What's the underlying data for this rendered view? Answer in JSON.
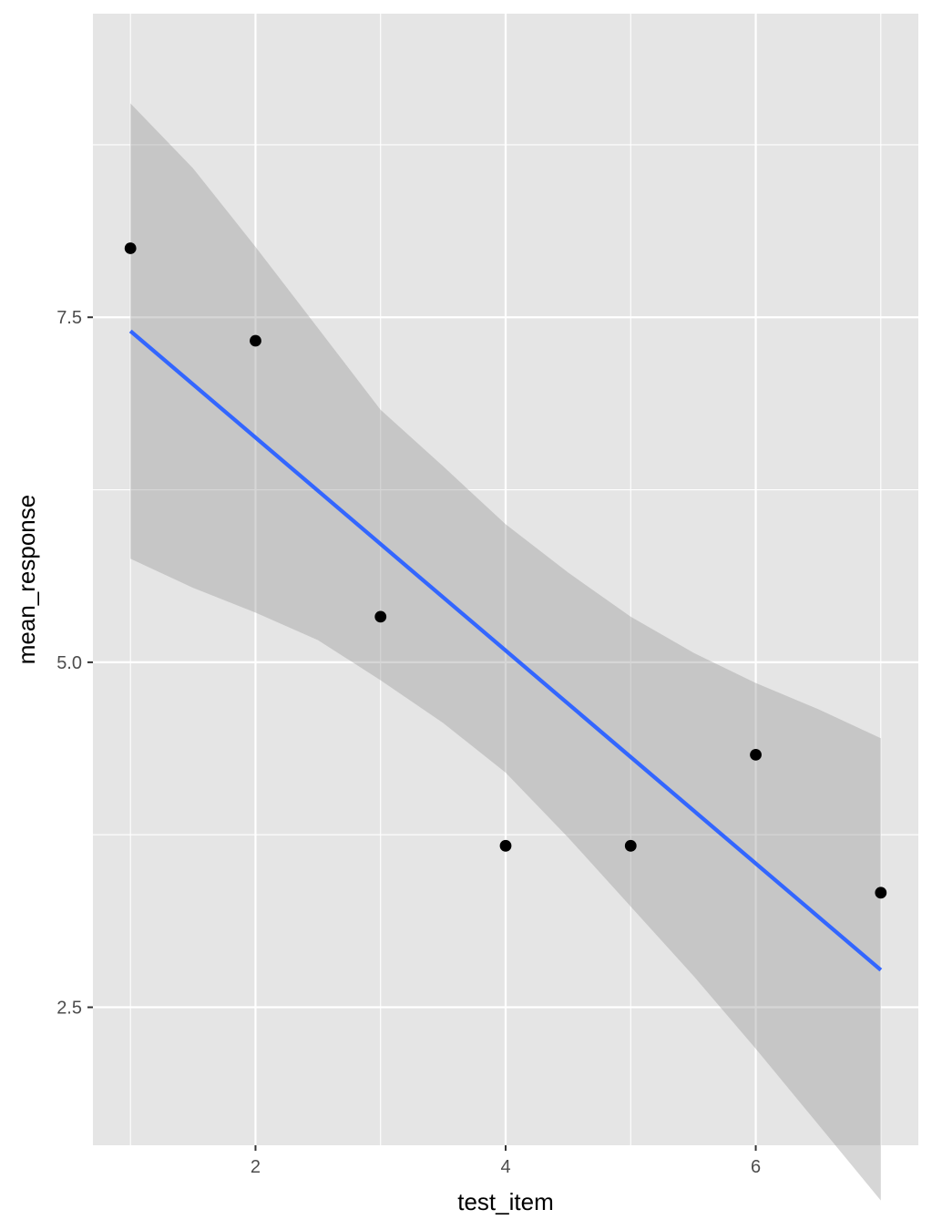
{
  "chart_data": {
    "type": "scatter",
    "title": "",
    "xlabel": "test_item",
    "ylabel": "mean_response",
    "xlim": [
      0.7,
      7.3
    ],
    "ylim": [
      1.5,
      9.7
    ],
    "x_ticks": [
      2,
      4,
      6
    ],
    "x_tick_labels": [
      "2",
      "4",
      "6"
    ],
    "x_minor_ticks": [
      1,
      3,
      5,
      7
    ],
    "y_ticks": [
      2.5,
      5.0,
      7.5
    ],
    "y_tick_labels": [
      "2.5",
      "5.0",
      "7.5"
    ],
    "y_minor_ticks": [
      1.25,
      3.75,
      6.25,
      8.75
    ],
    "grid": true,
    "legend": "none",
    "points": {
      "x": [
        1,
        2,
        3,
        4,
        5,
        6,
        7
      ],
      "y": [
        8.0,
        7.33,
        5.33,
        3.67,
        3.67,
        4.33,
        3.33
      ]
    },
    "fit_line": {
      "method": "lm",
      "x": [
        1,
        7
      ],
      "y": [
        7.4,
        2.77
      ]
    },
    "confidence_band": {
      "x": [
        1,
        1.5,
        2,
        2.5,
        3,
        3.5,
        4,
        4.5,
        5,
        5.5,
        6,
        6.5,
        7
      ],
      "upper": [
        9.05,
        8.58,
        8.01,
        7.42,
        6.83,
        6.42,
        6.0,
        5.65,
        5.33,
        5.07,
        4.85,
        4.66,
        4.45
      ],
      "lower": [
        5.75,
        5.54,
        5.36,
        5.16,
        4.87,
        4.56,
        4.2,
        3.73,
        3.23,
        2.73,
        2.2,
        1.65,
        1.1
      ]
    },
    "colors": {
      "panel_background": "#e5e5e5",
      "grid": "#ffffff",
      "points": "#000000",
      "fit_line": "#3366ff",
      "band": "#999999"
    }
  }
}
